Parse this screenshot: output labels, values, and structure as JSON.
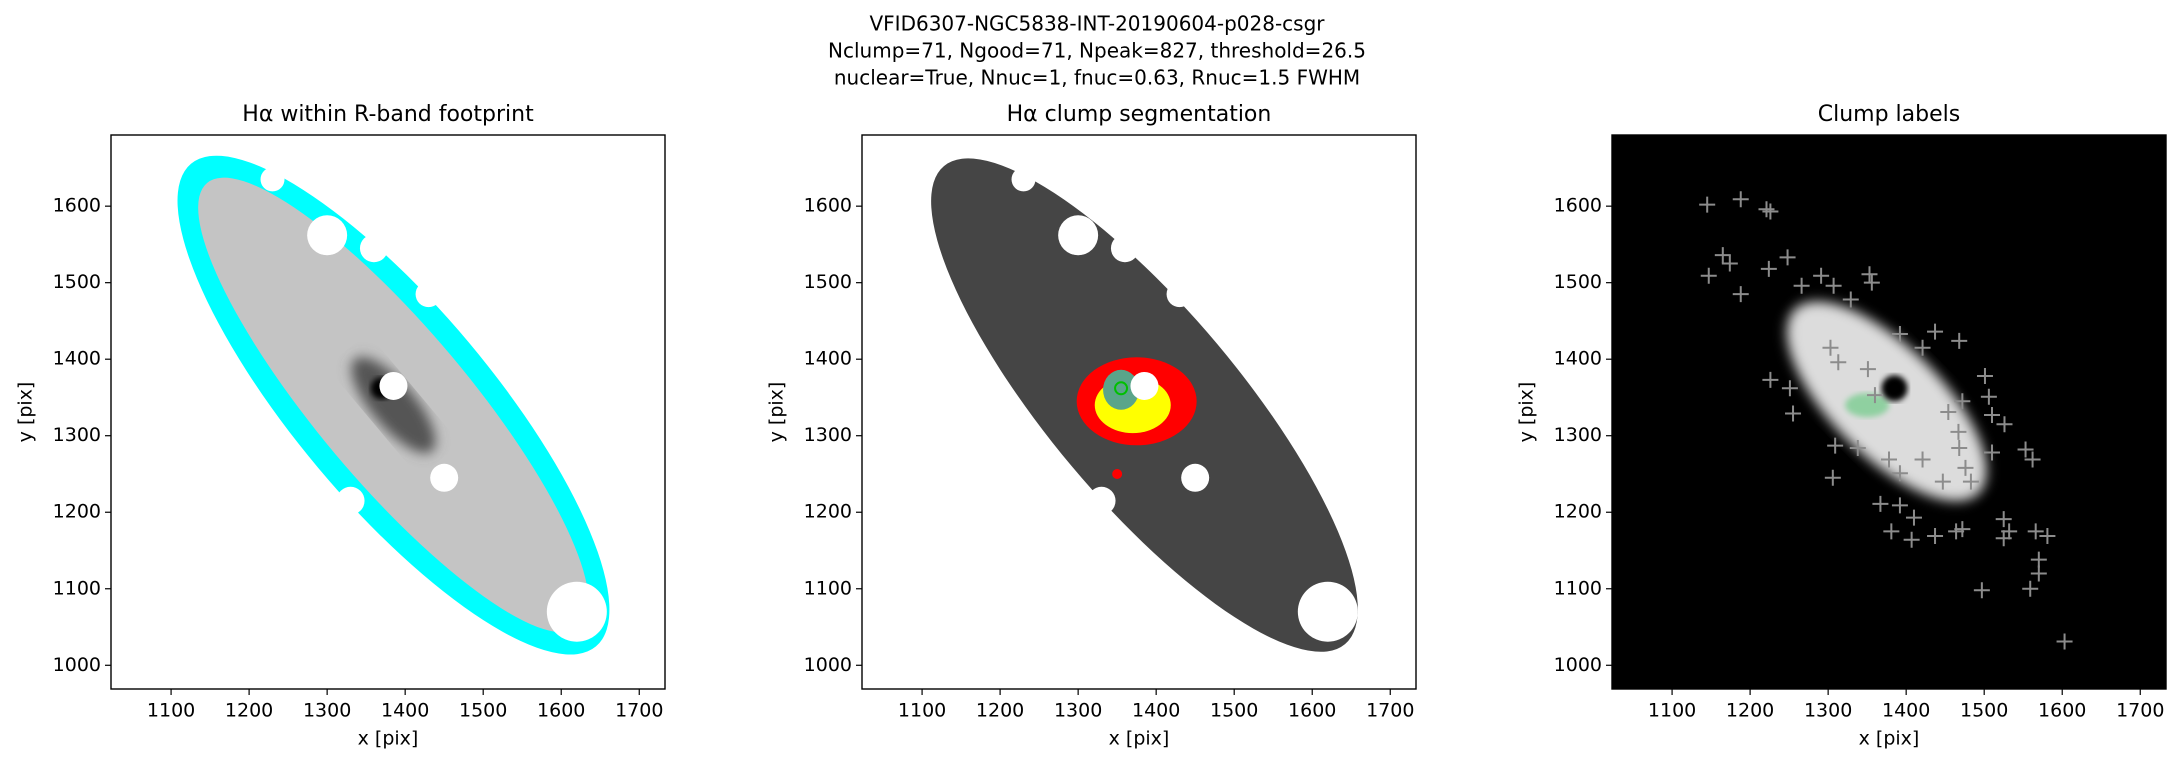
{
  "suptitle": [
    "VFID6307-NGC5838-INT-20190604-p028-csgr",
    "Nclump=71, Ngood=71, Npeak=827, threshold=26.5",
    "nuclear=True, Nnuc=1, fnuc=0.63, Rnuc=1.5 FWHM"
  ],
  "chart_data": [
    {
      "type": "image",
      "title": "Hα within R-band footprint",
      "xlabel": "x [pix]",
      "ylabel": "y [pix]",
      "xlim": [
        1023,
        1733
      ],
      "ylim": [
        969,
        1693
      ],
      "xticks": [
        1100,
        1200,
        1300,
        1400,
        1500,
        1600,
        1700
      ],
      "yticks": [
        1000,
        1100,
        1200,
        1300,
        1400,
        1500,
        1600
      ]
    },
    {
      "type": "image",
      "title": "Hα clump segmentation",
      "xlabel": "x [pix]",
      "ylabel": "y [pix]",
      "xlim": [
        1023,
        1733
      ],
      "ylim": [
        969,
        1693
      ],
      "xticks": [
        1100,
        1200,
        1300,
        1400,
        1500,
        1600,
        1700
      ],
      "yticks": [
        1000,
        1100,
        1200,
        1300,
        1400,
        1500,
        1600
      ]
    },
    {
      "type": "scatter",
      "title": "Clump labels",
      "xlabel": "x [pix]",
      "ylabel": "y [pix]",
      "xlim": [
        1023,
        1733
      ],
      "ylim": [
        969,
        1693
      ],
      "xticks": [
        1100,
        1200,
        1300,
        1400,
        1500,
        1600,
        1700
      ],
      "yticks": [
        1000,
        1100,
        1200,
        1300,
        1400,
        1500,
        1600
      ],
      "color": "#8c8c8c",
      "x": [
        1145,
        1188,
        1221,
        1226,
        1147,
        1165,
        1174,
        1188,
        1224,
        1248,
        1266,
        1291,
        1307,
        1353,
        1356,
        1329,
        1392,
        1437,
        1468,
        1421,
        1226,
        1251,
        1255,
        1501,
        1506,
        1510,
        1472,
        1454,
        1467,
        1526,
        1553,
        1562,
        1510,
        1468,
        1306,
        1309,
        1338,
        1378,
        1392,
        1421,
        1447,
        1483,
        1476,
        1367,
        1392,
        1410,
        1381,
        1407,
        1437,
        1464,
        1472,
        1525,
        1532,
        1525,
        1566,
        1581,
        1570,
        1570,
        1559,
        1497,
        1603,
        1303,
        1313,
        1351,
        1360
      ],
      "values": [
        1602,
        1609,
        1596,
        1593,
        1509,
        1536,
        1525,
        1485,
        1518,
        1533,
        1496,
        1509,
        1496,
        1511,
        1500,
        1478,
        1433,
        1436,
        1424,
        1415,
        1373,
        1362,
        1329,
        1378,
        1351,
        1327,
        1345,
        1331,
        1305,
        1315,
        1282,
        1269,
        1278,
        1284,
        1245,
        1287,
        1284,
        1269,
        1251,
        1269,
        1240,
        1240,
        1258,
        1211,
        1209,
        1193,
        1175,
        1164,
        1169,
        1175,
        1178,
        1191,
        1175,
        1166,
        1175,
        1169,
        1138,
        1120,
        1100,
        1098,
        1031,
        1415,
        1396,
        1387,
        1353
      ]
    }
  ]
}
